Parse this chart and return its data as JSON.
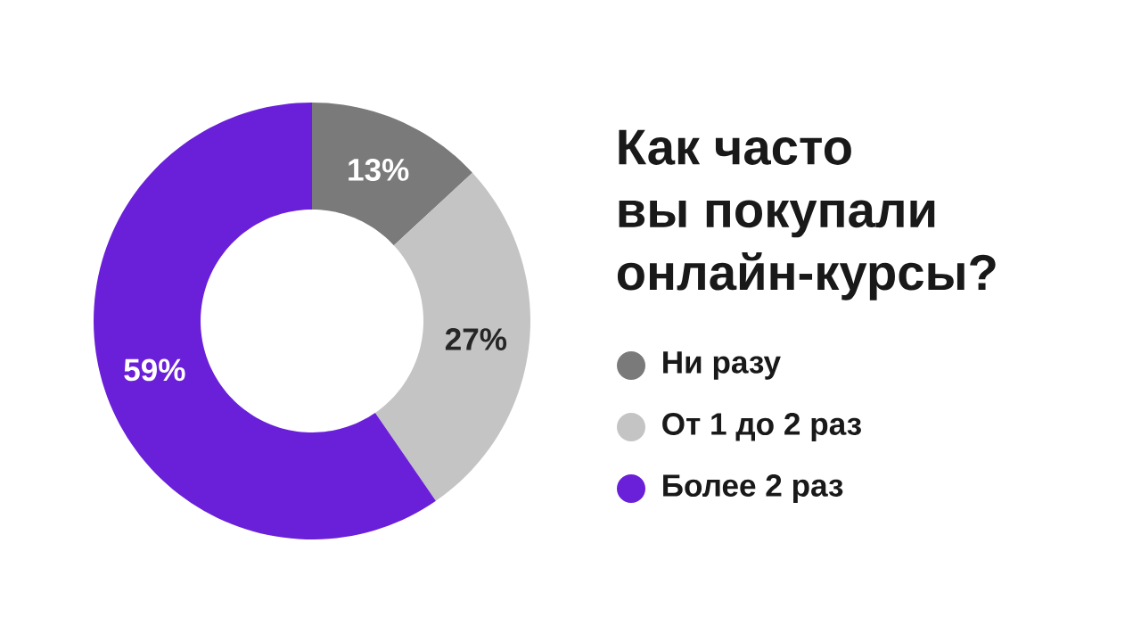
{
  "chart_data": {
    "type": "donut",
    "title": "Как часто вы покупали онлайн-курсы?",
    "categories": [
      "Ни разу",
      "От 1 до 2 раз",
      "Более 2 раз"
    ],
    "values": [
      13,
      27,
      59
    ],
    "colors": [
      "#7a7a7a",
      "#c4c4c4",
      "#6a1fd8"
    ],
    "value_labels": [
      "13%",
      "27%",
      "59%"
    ],
    "legend": "right"
  }
}
